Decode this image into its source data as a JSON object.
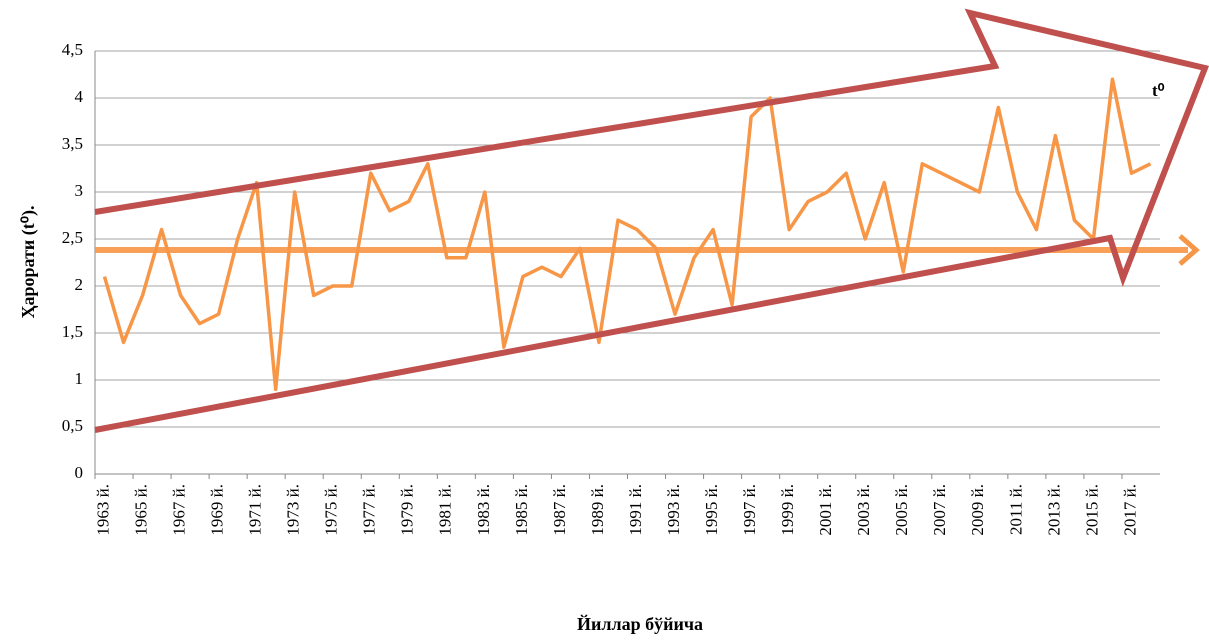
{
  "chart_data": {
    "type": "line",
    "y_label": "Ҳарорати (t⁰).",
    "x_label": "Йиллар бўйича",
    "annotation": "t⁰",
    "categories": [
      "1963 й.",
      null,
      "1965 й.",
      null,
      "1967 й.",
      null,
      "1969 й.",
      null,
      "1971 й.",
      null,
      "1973 й.",
      null,
      "1975 й.",
      null,
      "1977 й.",
      null,
      "1979 й.",
      null,
      "1981 й.",
      null,
      "1983 й.",
      null,
      "1985 й.",
      null,
      "1987 й.",
      null,
      "1989 й.",
      null,
      "1991 й.",
      null,
      "1993 й.",
      null,
      "1995 й.",
      null,
      "1997 й.",
      null,
      "1999 й.",
      null,
      "2001 й.",
      null,
      "2003 й.",
      null,
      "2005 й.",
      null,
      "2007 й.",
      null,
      "2009 й.",
      null,
      "2011 й.",
      null,
      "2013 й.",
      null,
      "2015 й.",
      null,
      "2017 й.",
      null
    ],
    "series": [
      {
        "color": "#f79646",
        "values": [
          2.1,
          1.4,
          1.9,
          2.6,
          1.9,
          1.6,
          1.7,
          2.5,
          3.1,
          0.9,
          3.0,
          1.9,
          2.0,
          2.0,
          3.2,
          2.8,
          2.9,
          3.3,
          2.3,
          2.3,
          3.0,
          1.35,
          2.1,
          2.2,
          2.1,
          2.4,
          1.4,
          2.7,
          2.6,
          2.4,
          1.7,
          2.3,
          2.6,
          1.8,
          3.8,
          4.0,
          2.6,
          2.9,
          3.0,
          3.2,
          2.5,
          3.1,
          2.15,
          3.3,
          3.2,
          3.1,
          3.0,
          3.9,
          3.0,
          2.6,
          3.6,
          2.7,
          2.5,
          4.2,
          3.2,
          3.3
        ]
      }
    ],
    "ylim": [
      0,
      4.5
    ],
    "yticks": [
      0,
      {
        "value": 0.5,
        "label": "0,5"
      },
      1,
      {
        "value": 1.5,
        "label": "1,5"
      },
      2,
      {
        "value": 2.5,
        "label": "2,5"
      },
      3,
      {
        "value": 3.5,
        "label": "3,5"
      },
      4,
      {
        "value": 4.5,
        "label": "4,5"
      }
    ],
    "grid": true
  }
}
